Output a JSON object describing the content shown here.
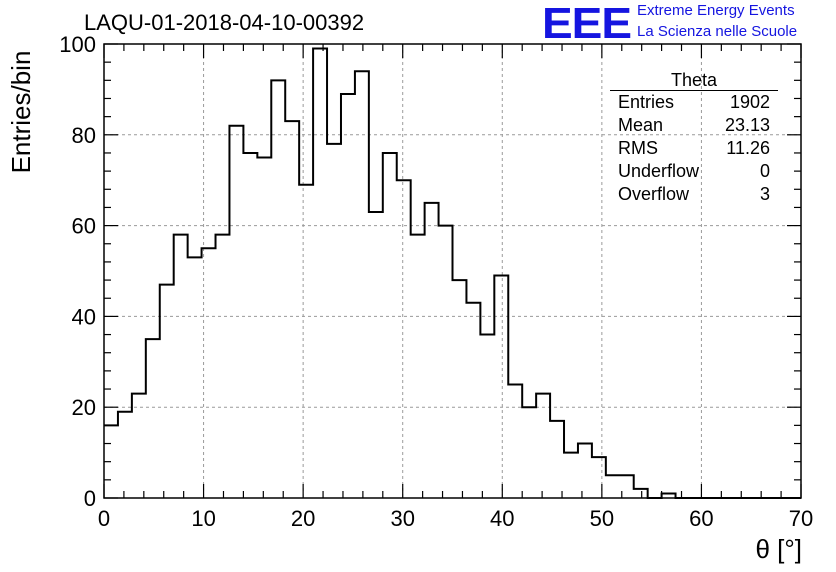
{
  "header": {
    "title": "LAQU-01-2018-04-10-00392",
    "logo": "EEE",
    "logo_line1": "Extreme Energy Events",
    "logo_line2": "La Scienza nelle Scuole"
  },
  "stats": {
    "title": "Theta",
    "rows": [
      {
        "label": "Entries",
        "value": "1902"
      },
      {
        "label": "Mean",
        "value": "23.13"
      },
      {
        "label": "RMS",
        "value": "11.26"
      },
      {
        "label": "Underflow",
        "value": "0"
      },
      {
        "label": "Overflow",
        "value": "3"
      }
    ]
  },
  "chart_data": {
    "type": "histogram",
    "title": "LAQU-01-2018-04-10-00392",
    "xlabel": "θ [°]",
    "ylabel": "Entries/bin",
    "xlim": [
      0,
      70
    ],
    "ylim": [
      0,
      100
    ],
    "x_ticks": [
      0,
      10,
      20,
      30,
      40,
      50,
      60,
      70
    ],
    "y_ticks": [
      0,
      20,
      40,
      60,
      80,
      100
    ],
    "grid": true,
    "bin_width": 1.4,
    "bin_values": [
      16,
      19,
      23,
      35,
      47,
      58,
      53,
      55,
      58,
      82,
      76,
      75,
      92,
      83,
      69,
      99,
      78,
      89,
      94,
      63,
      76,
      70,
      58,
      65,
      60,
      48,
      43,
      36,
      49,
      25,
      20,
      23,
      17,
      10,
      12,
      9,
      5,
      5,
      2,
      0,
      1,
      0,
      0,
      0,
      0,
      0,
      0,
      0,
      0,
      0
    ]
  }
}
